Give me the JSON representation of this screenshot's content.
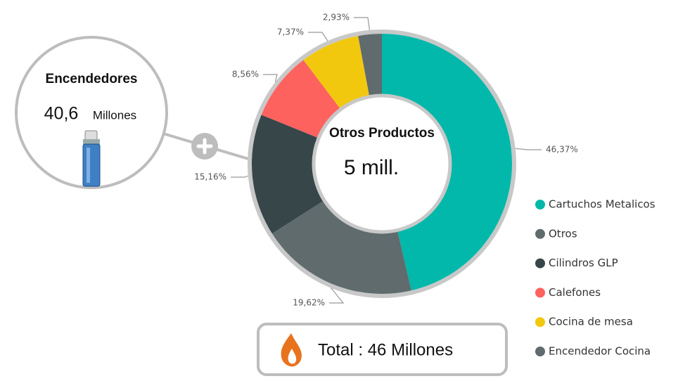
{
  "callout": {
    "title": "Encendedores",
    "value": "40,6",
    "unit": "Millones"
  },
  "center": {
    "title": "Otros Productos",
    "value": "5 mill."
  },
  "total": "Total : 46 Millones",
  "chart_data": {
    "type": "pie",
    "categories": [
      "Cartuchos Metalicos",
      "Otros",
      "Cilindros GLP",
      "Calefones",
      "Cocina de mesa",
      "Encendedor Cocina"
    ],
    "values": [
      46.37,
      19.62,
      15.16,
      8.56,
      7.37,
      2.93
    ],
    "value_labels": [
      "46,37%",
      "19,62%",
      "15,16%",
      "8,56%",
      "7,37%",
      "2,93%"
    ],
    "colors": [
      "#01b8aa",
      "#5f6b6d",
      "#374649",
      "#fd625e",
      "#f2c80f",
      "#5f6b6d"
    ],
    "legend": "right"
  }
}
